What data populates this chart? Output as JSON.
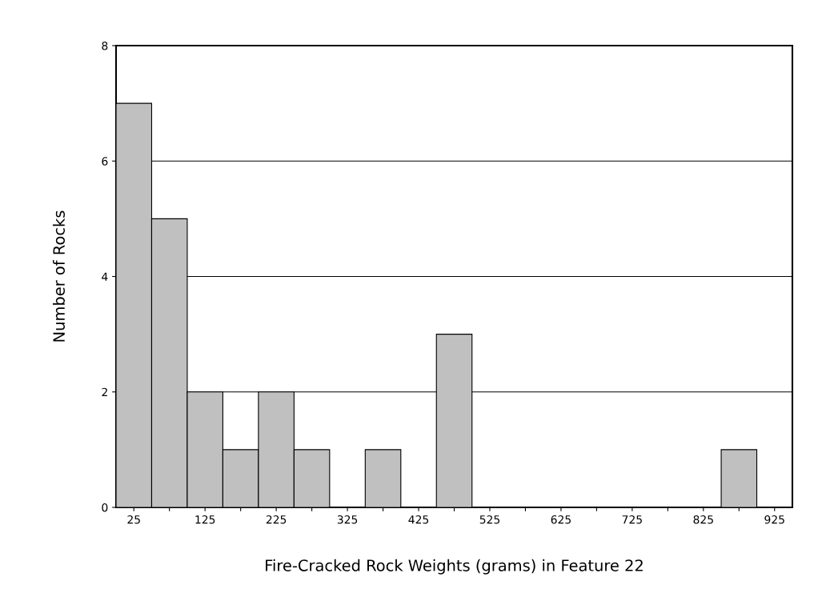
{
  "chart_data": {
    "type": "bar",
    "xlabel": "Fire-Cracked Rock Weights (grams) in Feature 22",
    "ylabel": "Number of Rocks",
    "categories": [
      "25",
      null,
      "125",
      null,
      "225",
      null,
      "325",
      null,
      "425",
      null,
      "525",
      null,
      "625",
      null,
      "725",
      null,
      "825",
      null,
      "925"
    ],
    "values": [
      7,
      5,
      2,
      1,
      2,
      1,
      0,
      1,
      0,
      3,
      0,
      0,
      0,
      0,
      0,
      0,
      0,
      1,
      0
    ],
    "color": "#c0c0c0",
    "ylim": [
      0,
      8
    ],
    "yticks": [
      0,
      2,
      4,
      6,
      8
    ],
    "grid": "y"
  }
}
